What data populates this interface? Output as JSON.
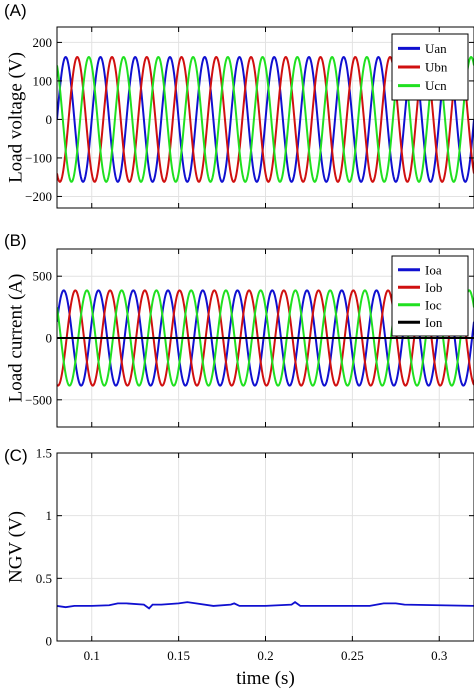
{
  "chart_data": [
    {
      "panel_label": "(A)",
      "type": "line",
      "xlabel": "",
      "ylabel": "Load voltage (V)",
      "xlim": [
        0.08,
        0.32
      ],
      "ylim": [
        -230,
        240
      ],
      "yticks": [
        -200,
        -100,
        0,
        100,
        200
      ],
      "yticklabels": [
        "−200",
        "−100",
        "0",
        "100",
        "200"
      ],
      "grid": true,
      "legend_position": "top-right",
      "waveform": {
        "amplitude": 162,
        "frequency_hz": 50
      },
      "series": [
        {
          "name": "Uan",
          "color": "#1010d0",
          "phase_deg": 0
        },
        {
          "name": "Ubn",
          "color": "#d01010",
          "phase_deg": -120
        },
        {
          "name": "Ucn",
          "color": "#20e020",
          "phase_deg": 120
        }
      ]
    },
    {
      "panel_label": "(B)",
      "type": "line",
      "xlabel": "",
      "ylabel": "Load current (A)",
      "xlim": [
        0.08,
        0.32
      ],
      "ylim": [
        -720,
        720
      ],
      "yticks": [
        -500,
        0,
        500
      ],
      "yticklabels": [
        "−500",
        "0",
        "500"
      ],
      "grid": true,
      "legend_position": "top-right",
      "waveform": {
        "amplitude": 385,
        "frequency_hz": 50
      },
      "series": [
        {
          "name": "Ioa",
          "color": "#1010d0",
          "phase_deg": 20
        },
        {
          "name": "Iob",
          "color": "#d01010",
          "phase_deg": -100
        },
        {
          "name": "Ioc",
          "color": "#20e020",
          "phase_deg": 140
        },
        {
          "name": "Ion",
          "color": "#000000",
          "constant": 0
        }
      ]
    },
    {
      "panel_label": "(C)",
      "type": "line",
      "xlabel": "time (s)",
      "ylabel": "NGV (V)",
      "xlim": [
        0.08,
        0.32
      ],
      "ylim": [
        0,
        1.5
      ],
      "yticks": [
        0,
        0.5,
        1,
        1.5
      ],
      "yticklabels": [
        "0",
        "0.5",
        "1",
        "1.5"
      ],
      "xticks": [
        0.1,
        0.15,
        0.2,
        0.25,
        0.3
      ],
      "xticklabels": [
        "0.1",
        "0.15",
        "0.2",
        "0.25",
        "0.3"
      ],
      "grid": true,
      "series": [
        {
          "name": "NGV",
          "color": "#1010d0",
          "x": [
            0.08,
            0.085,
            0.09,
            0.1,
            0.11,
            0.115,
            0.12,
            0.13,
            0.133,
            0.135,
            0.14,
            0.15,
            0.155,
            0.16,
            0.17,
            0.18,
            0.182,
            0.185,
            0.2,
            0.215,
            0.217,
            0.22,
            0.24,
            0.26,
            0.264,
            0.268,
            0.275,
            0.28,
            0.3,
            0.32
          ],
          "y": [
            0.28,
            0.27,
            0.28,
            0.28,
            0.285,
            0.3,
            0.3,
            0.29,
            0.26,
            0.29,
            0.29,
            0.3,
            0.31,
            0.3,
            0.28,
            0.29,
            0.3,
            0.28,
            0.28,
            0.29,
            0.31,
            0.28,
            0.28,
            0.28,
            0.29,
            0.3,
            0.3,
            0.29,
            0.285,
            0.28
          ]
        }
      ]
    }
  ]
}
